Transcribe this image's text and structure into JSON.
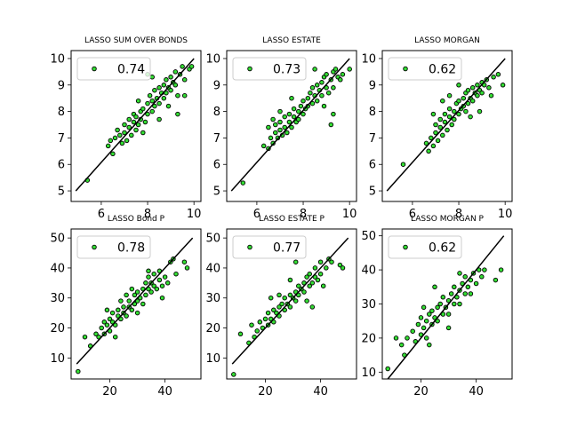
{
  "chart_data": [
    {
      "type": "scatter",
      "title": "LASSO SUM OVER BONDS",
      "legend": {
        "label": "0.74",
        "placement": "top-left"
      },
      "xlim": [
        4.7,
        10.3
      ],
      "ylim": [
        4.6,
        10.3
      ],
      "xticks": [
        6,
        8,
        10
      ],
      "yticks": [
        5,
        6,
        7,
        8,
        9,
        10
      ],
      "ref_line": [
        [
          4.9,
          5.0
        ],
        [
          10.0,
          10.0
        ]
      ],
      "color": "#33dd33",
      "points": [
        [
          5.4,
          5.4
        ],
        [
          6.5,
          6.4
        ],
        [
          6.3,
          6.7
        ],
        [
          6.4,
          6.9
        ],
        [
          6.6,
          7.0
        ],
        [
          6.8,
          7.1
        ],
        [
          6.7,
          7.3
        ],
        [
          6.9,
          6.8
        ],
        [
          7.0,
          7.2
        ],
        [
          7.0,
          7.5
        ],
        [
          7.1,
          6.9
        ],
        [
          7.2,
          7.4
        ],
        [
          7.2,
          7.7
        ],
        [
          7.3,
          7.1
        ],
        [
          7.4,
          7.6
        ],
        [
          7.4,
          7.9
        ],
        [
          7.5,
          7.3
        ],
        [
          7.5,
          7.8
        ],
        [
          7.6,
          7.5
        ],
        [
          7.7,
          8.0
        ],
        [
          7.7,
          7.7
        ],
        [
          7.8,
          8.1
        ],
        [
          7.9,
          7.6
        ],
        [
          8.0,
          8.3
        ],
        [
          8.0,
          7.9
        ],
        [
          8.1,
          8.6
        ],
        [
          8.2,
          8.0
        ],
        [
          8.2,
          8.4
        ],
        [
          8.3,
          8.8
        ],
        [
          8.3,
          8.2
        ],
        [
          8.4,
          8.5
        ],
        [
          8.5,
          8.9
        ],
        [
          8.5,
          8.3
        ],
        [
          8.6,
          8.7
        ],
        [
          8.7,
          9.0
        ],
        [
          8.7,
          8.5
        ],
        [
          8.8,
          9.2
        ],
        [
          8.8,
          8.7
        ],
        [
          8.9,
          8.9
        ],
        [
          9.0,
          9.3
        ],
        [
          9.0,
          8.8
        ],
        [
          9.1,
          9.1
        ],
        [
          9.2,
          9.5
        ],
        [
          9.2,
          9.0
        ],
        [
          9.3,
          8.6
        ],
        [
          9.4,
          9.4
        ],
        [
          9.5,
          9.7
        ],
        [
          9.6,
          9.2
        ],
        [
          9.8,
          9.6
        ],
        [
          9.9,
          9.7
        ],
        [
          8.2,
          9.3
        ],
        [
          8.0,
          9.4
        ],
        [
          8.5,
          7.7
        ],
        [
          9.3,
          7.9
        ],
        [
          7.6,
          8.4
        ],
        [
          7.8,
          7.2
        ],
        [
          8.9,
          8.2
        ],
        [
          9.6,
          8.6
        ]
      ]
    },
    {
      "type": "scatter",
      "title": "LASSO ESTATE",
      "legend": {
        "label": "0.73",
        "placement": "top-left"
      },
      "xlim": [
        4.7,
        10.3
      ],
      "ylim": [
        4.6,
        10.3
      ],
      "xticks": [
        6,
        8,
        10
      ],
      "yticks": [
        5,
        6,
        7,
        8,
        9,
        10
      ],
      "ref_line": [
        [
          4.9,
          5.0
        ],
        [
          10.0,
          10.0
        ]
      ],
      "color": "#33dd33",
      "points": [
        [
          5.4,
          5.3
        ],
        [
          6.3,
          6.7
        ],
        [
          6.5,
          6.6
        ],
        [
          6.6,
          7.0
        ],
        [
          6.7,
          6.8
        ],
        [
          6.8,
          7.2
        ],
        [
          6.8,
          7.5
        ],
        [
          6.9,
          7.0
        ],
        [
          7.0,
          7.3
        ],
        [
          7.0,
          7.6
        ],
        [
          7.1,
          7.1
        ],
        [
          7.2,
          7.4
        ],
        [
          7.2,
          7.8
        ],
        [
          7.3,
          7.2
        ],
        [
          7.4,
          7.6
        ],
        [
          7.4,
          7.9
        ],
        [
          7.5,
          7.4
        ],
        [
          7.6,
          7.8
        ],
        [
          7.6,
          8.1
        ],
        [
          7.7,
          7.6
        ],
        [
          7.8,
          8.0
        ],
        [
          7.8,
          7.7
        ],
        [
          7.9,
          8.2
        ],
        [
          8.0,
          7.9
        ],
        [
          8.0,
          8.4
        ],
        [
          8.1,
          8.1
        ],
        [
          8.2,
          8.5
        ],
        [
          8.2,
          8.2
        ],
        [
          8.3,
          8.7
        ],
        [
          8.4,
          8.3
        ],
        [
          8.4,
          8.9
        ],
        [
          8.5,
          8.6
        ],
        [
          8.6,
          9.0
        ],
        [
          8.6,
          8.4
        ],
        [
          8.7,
          8.8
        ],
        [
          8.8,
          9.1
        ],
        [
          8.8,
          8.6
        ],
        [
          8.9,
          9.3
        ],
        [
          9.0,
          8.9
        ],
        [
          9.0,
          9.4
        ],
        [
          9.1,
          8.7
        ],
        [
          9.2,
          9.2
        ],
        [
          9.3,
          9.5
        ],
        [
          9.3,
          8.9
        ],
        [
          9.4,
          9.6
        ],
        [
          9.5,
          9.3
        ],
        [
          9.6,
          9.2
        ],
        [
          9.7,
          9.4
        ],
        [
          10.0,
          9.6
        ],
        [
          6.5,
          7.4
        ],
        [
          7.0,
          8.0
        ],
        [
          9.2,
          7.5
        ],
        [
          9.3,
          7.9
        ],
        [
          8.5,
          9.6
        ],
        [
          7.5,
          8.5
        ],
        [
          8.9,
          8.2
        ],
        [
          6.7,
          7.7
        ]
      ]
    },
    {
      "type": "scatter",
      "title": "LASSO MORGAN",
      "legend": {
        "label": "0.62",
        "placement": "top-left"
      },
      "xlim": [
        4.7,
        10.3
      ],
      "ylim": [
        4.6,
        10.3
      ],
      "xticks": [
        6,
        8,
        10
      ],
      "yticks": [
        5,
        6,
        7,
        8,
        9,
        10
      ],
      "ref_line": [
        [
          4.9,
          5.0
        ],
        [
          10.0,
          10.0
        ]
      ],
      "color": "#33dd33",
      "points": [
        [
          5.6,
          6.0
        ],
        [
          6.6,
          6.8
        ],
        [
          6.7,
          6.5
        ],
        [
          6.8,
          7.0
        ],
        [
          6.9,
          6.7
        ],
        [
          7.0,
          7.2
        ],
        [
          7.0,
          7.5
        ],
        [
          7.1,
          6.9
        ],
        [
          7.2,
          7.4
        ],
        [
          7.2,
          7.7
        ],
        [
          7.3,
          7.1
        ],
        [
          7.4,
          7.6
        ],
        [
          7.4,
          7.9
        ],
        [
          7.5,
          7.3
        ],
        [
          7.6,
          7.8
        ],
        [
          7.6,
          8.1
        ],
        [
          7.7,
          7.5
        ],
        [
          7.8,
          8.0
        ],
        [
          7.8,
          7.7
        ],
        [
          7.9,
          8.3
        ],
        [
          8.0,
          7.9
        ],
        [
          8.0,
          8.4
        ],
        [
          8.1,
          8.1
        ],
        [
          8.2,
          8.5
        ],
        [
          8.2,
          8.2
        ],
        [
          8.3,
          8.7
        ],
        [
          8.4,
          8.3
        ],
        [
          8.4,
          8.8
        ],
        [
          8.5,
          8.5
        ],
        [
          8.6,
          8.9
        ],
        [
          8.6,
          8.4
        ],
        [
          8.7,
          8.7
        ],
        [
          8.8,
          9.0
        ],
        [
          8.8,
          8.6
        ],
        [
          8.9,
          8.8
        ],
        [
          9.0,
          9.1
        ],
        [
          9.0,
          8.7
        ],
        [
          9.1,
          9.0
        ],
        [
          9.2,
          9.2
        ],
        [
          9.3,
          8.9
        ],
        [
          9.4,
          8.6
        ],
        [
          9.5,
          9.3
        ],
        [
          9.7,
          9.4
        ],
        [
          9.9,
          9.0
        ],
        [
          7.3,
          8.4
        ],
        [
          7.6,
          8.6
        ],
        [
          8.9,
          8.0
        ],
        [
          8.5,
          7.8
        ],
        [
          6.9,
          7.9
        ],
        [
          8.0,
          9.0
        ],
        [
          8.3,
          8.0
        ]
      ]
    },
    {
      "type": "scatter",
      "title": "LASSO Bond P",
      "legend": {
        "label": "0.78",
        "placement": "top-left"
      },
      "xlim": [
        6,
        53
      ],
      "ylim": [
        3,
        53
      ],
      "xticks": [
        20,
        40
      ],
      "yticks": [
        10,
        20,
        30,
        40,
        50
      ],
      "ref_line": [
        [
          8,
          8
        ],
        [
          50,
          50
        ]
      ],
      "color": "#33dd33",
      "points": [
        [
          8.5,
          5.5
        ],
        [
          11,
          17
        ],
        [
          13,
          14
        ],
        [
          15,
          18
        ],
        [
          16,
          17
        ],
        [
          17,
          20
        ],
        [
          18,
          18
        ],
        [
          18,
          22
        ],
        [
          19,
          21
        ],
        [
          20,
          19
        ],
        [
          20,
          23
        ],
        [
          21,
          22
        ],
        [
          21,
          25
        ],
        [
          22,
          21
        ],
        [
          23,
          24
        ],
        [
          23,
          26
        ],
        [
          24,
          23
        ],
        [
          25,
          25
        ],
        [
          25,
          27
        ],
        [
          26,
          24
        ],
        [
          27,
          27
        ],
        [
          27,
          29
        ],
        [
          28,
          26
        ],
        [
          29,
          28
        ],
        [
          29,
          31
        ],
        [
          30,
          29
        ],
        [
          30,
          32
        ],
        [
          31,
          30
        ],
        [
          32,
          33
        ],
        [
          32,
          28
        ],
        [
          33,
          31
        ],
        [
          33,
          35
        ],
        [
          34,
          33
        ],
        [
          34,
          37
        ],
        [
          35,
          32
        ],
        [
          35,
          35
        ],
        [
          36,
          34
        ],
        [
          36,
          38
        ],
        [
          37,
          33
        ],
        [
          38,
          36
        ],
        [
          38,
          39
        ],
        [
          39,
          34
        ],
        [
          40,
          37
        ],
        [
          41,
          35
        ],
        [
          42,
          42
        ],
        [
          43,
          43
        ],
        [
          47,
          42
        ],
        [
          48,
          40
        ],
        [
          19,
          26
        ],
        [
          22,
          17
        ],
        [
          26,
          31
        ],
        [
          30,
          25
        ],
        [
          34,
          39
        ],
        [
          39,
          30
        ],
        [
          44,
          38
        ],
        [
          28,
          33
        ],
        [
          24,
          29
        ]
      ]
    },
    {
      "type": "scatter",
      "title": "LASSO ESTATE P",
      "legend": {
        "label": "0.77",
        "placement": "top-left"
      },
      "xlim": [
        6,
        53
      ],
      "ylim": [
        3,
        53
      ],
      "xticks": [
        20,
        40
      ],
      "yticks": [
        10,
        20,
        30,
        40,
        50
      ],
      "ref_line": [
        [
          8,
          8
        ],
        [
          50,
          50
        ]
      ],
      "color": "#33dd33",
      "points": [
        [
          8.5,
          4.5
        ],
        [
          11,
          18
        ],
        [
          14,
          15
        ],
        [
          15,
          21
        ],
        [
          16,
          17
        ],
        [
          17,
          19
        ],
        [
          18,
          22
        ],
        [
          19,
          20
        ],
        [
          20,
          23
        ],
        [
          21,
          21
        ],
        [
          21,
          25
        ],
        [
          22,
          23
        ],
        [
          23,
          26
        ],
        [
          23,
          22
        ],
        [
          24,
          25
        ],
        [
          25,
          27
        ],
        [
          25,
          24
        ],
        [
          26,
          28
        ],
        [
          27,
          26
        ],
        [
          27,
          30
        ],
        [
          28,
          28
        ],
        [
          29,
          31
        ],
        [
          29,
          27
        ],
        [
          30,
          30
        ],
        [
          31,
          32
        ],
        [
          31,
          29
        ],
        [
          32,
          34
        ],
        [
          32,
          31
        ],
        [
          33,
          33
        ],
        [
          34,
          35
        ],
        [
          34,
          32
        ],
        [
          35,
          37
        ],
        [
          36,
          34
        ],
        [
          36,
          38
        ],
        [
          37,
          35
        ],
        [
          38,
          37
        ],
        [
          38,
          40
        ],
        [
          39,
          36
        ],
        [
          40,
          38
        ],
        [
          41,
          34
        ],
        [
          42,
          40
        ],
        [
          43,
          43
        ],
        [
          44,
          42
        ],
        [
          47,
          41
        ],
        [
          48,
          40
        ],
        [
          31,
          42
        ],
        [
          29,
          36
        ],
        [
          22,
          30
        ],
        [
          25,
          31
        ],
        [
          35,
          29
        ],
        [
          37,
          27
        ],
        [
          40,
          42
        ]
      ]
    },
    {
      "type": "scatter",
      "title": "LASSO MORGAN P",
      "legend": {
        "label": "0.62",
        "placement": "top-left"
      },
      "xlim": [
        6,
        53
      ],
      "ylim": [
        8,
        52
      ],
      "xticks": [
        20,
        40
      ],
      "yticks": [
        10,
        20,
        30,
        40,
        50
      ],
      "ref_line": [
        [
          8,
          8
        ],
        [
          50,
          50
        ]
      ],
      "color": "#33dd33",
      "points": [
        [
          8,
          11
        ],
        [
          11,
          20
        ],
        [
          13,
          18
        ],
        [
          14,
          15
        ],
        [
          15,
          20
        ],
        [
          17,
          22
        ],
        [
          18,
          19
        ],
        [
          19,
          24
        ],
        [
          20,
          21
        ],
        [
          20,
          26
        ],
        [
          21,
          23
        ],
        [
          22,
          25
        ],
        [
          22,
          20
        ],
        [
          23,
          27
        ],
        [
          24,
          24
        ],
        [
          24,
          28
        ],
        [
          25,
          26
        ],
        [
          26,
          29
        ],
        [
          26,
          25
        ],
        [
          27,
          30
        ],
        [
          28,
          27
        ],
        [
          28,
          32
        ],
        [
          29,
          29
        ],
        [
          30,
          31
        ],
        [
          30,
          27
        ],
        [
          31,
          33
        ],
        [
          32,
          30
        ],
        [
          32,
          35
        ],
        [
          33,
          32
        ],
        [
          34,
          34
        ],
        [
          34,
          30
        ],
        [
          35,
          36
        ],
        [
          36,
          33
        ],
        [
          36,
          38
        ],
        [
          37,
          35
        ],
        [
          38,
          37
        ],
        [
          38,
          33
        ],
        [
          39,
          39
        ],
        [
          40,
          36
        ],
        [
          41,
          40
        ],
        [
          42,
          38
        ],
        [
          43,
          40
        ],
        [
          47,
          37
        ],
        [
          49,
          40
        ],
        [
          25,
          35
        ],
        [
          23,
          18
        ],
        [
          30,
          23
        ],
        [
          34,
          39
        ],
        [
          21,
          29
        ]
      ]
    }
  ]
}
